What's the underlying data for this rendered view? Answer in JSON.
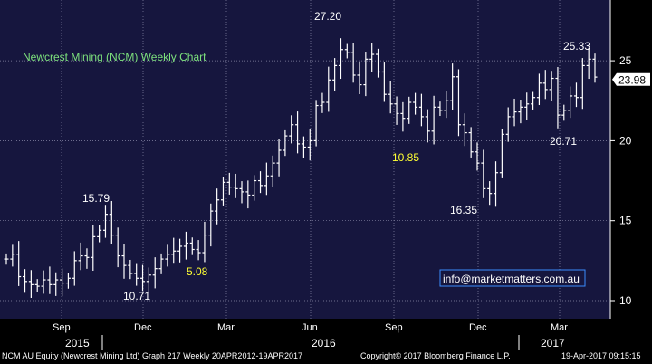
{
  "chart_data": {
    "type": "ohlc",
    "title": "Newcrest Mining (NCM) Weekly Chart",
    "ylim": [
      9,
      28.3
    ],
    "y_ticks": [
      10,
      15,
      20,
      25
    ],
    "last_price": "23.98",
    "x_month_labels": [
      "Sep",
      "Dec",
      "Mar",
      "Jun",
      "Sep",
      "Dec",
      "Mar"
    ],
    "x_year_labels": [
      "2015",
      "2016",
      "2017"
    ],
    "annotations": [
      {
        "text": "15.79",
        "color": "#ffffff"
      },
      {
        "text": "10.71",
        "color": "#ffffff"
      },
      {
        "text": "5.08",
        "color": "#ffff33"
      },
      {
        "text": "27.20",
        "color": "#ffffff"
      },
      {
        "text": "10.85",
        "color": "#ffff33"
      },
      {
        "text": "16.35",
        "color": "#ffffff"
      },
      {
        "text": "20.71",
        "color": "#ffffff"
      },
      {
        "text": "25.33",
        "color": "#ffffff"
      }
    ],
    "watermark": "info@marketmatters.com.au",
    "weekly_close": [
      12.6,
      12.9,
      11.5,
      11.2,
      11.0,
      10.9,
      11.3,
      11.0,
      11.3,
      11.1,
      11.4,
      12.5,
      12.8,
      12.7,
      14.0,
      14.4,
      15.4,
      14.1,
      12.8,
      12.2,
      11.7,
      11.4,
      11.2,
      11.6,
      12.0,
      12.6,
      12.9,
      13.1,
      13.4,
      13.6,
      13.2,
      13.0,
      14.1,
      15.6,
      16.3,
      17.4,
      17.1,
      17.0,
      16.8,
      16.6,
      17.5,
      17.2,
      17.8,
      18.6,
      19.4,
      20.3,
      21.0,
      19.8,
      19.6,
      20.0,
      22.2,
      22.4,
      23.8,
      24.7,
      25.7,
      25.5,
      24.1,
      23.5,
      25.1,
      25.4,
      24.3,
      22.9,
      22.3,
      21.7,
      21.4,
      22.4,
      22.1,
      21.5,
      20.6,
      22.1,
      21.9,
      22.5,
      24.0,
      21.0,
      20.5,
      19.3,
      18.6,
      17.0,
      16.7,
      18.0,
      20.4,
      21.5,
      21.8,
      22.1,
      22.3,
      22.7,
      23.6,
      23.2,
      23.9,
      21.6,
      21.9,
      22.8,
      22.7,
      24.7,
      25.1,
      23.98
    ]
  },
  "footer": {
    "left": "NCM AU Equity (Newcrest Mining Ltd) Graph 217  Weekly 20APR2012-19APR2017",
    "center": "Copyright© 2017 Bloomberg Finance L.P.",
    "right": "19-Apr-2017 09:15:15"
  },
  "colors": {
    "plot_bg": "#16163e",
    "bars": "#ffffff",
    "title": "#7de27d",
    "highlight": "#ffff33",
    "watermark_border": "#3a8cff"
  }
}
